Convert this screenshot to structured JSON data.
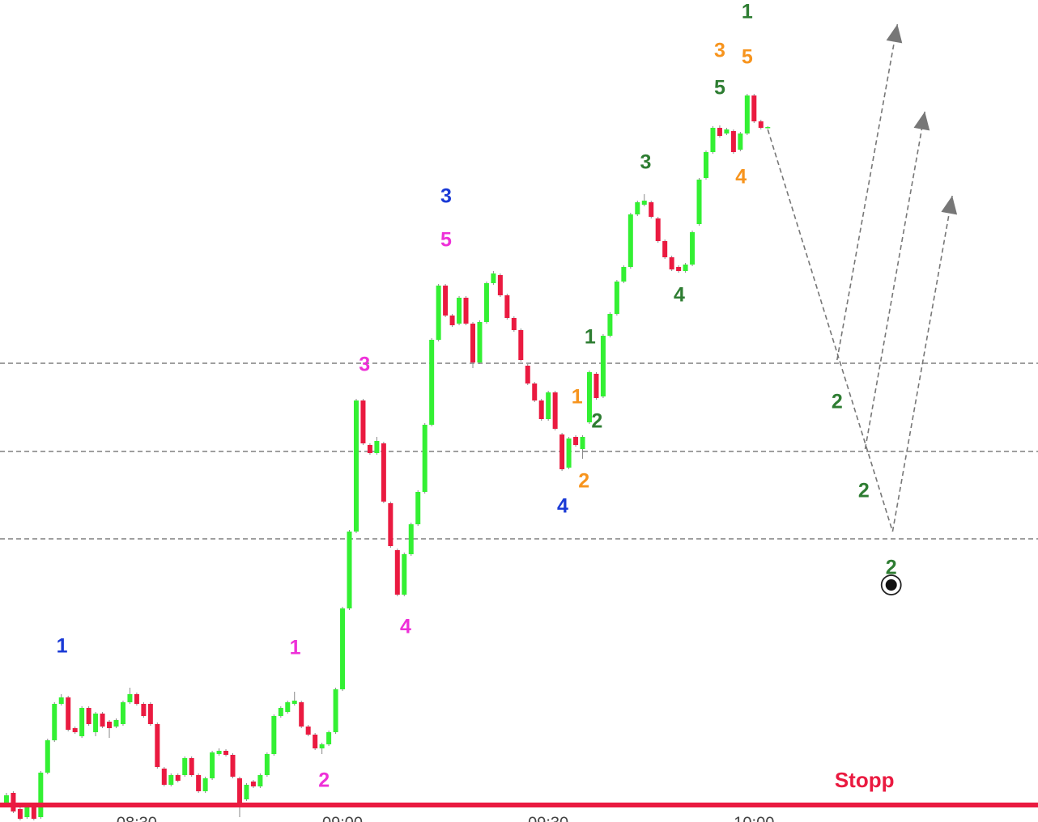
{
  "chart_data": {
    "type": "candlestick",
    "categories": [
      null,
      null,
      null,
      null,
      null,
      null,
      null,
      null,
      null,
      null,
      null,
      null,
      null,
      null,
      null,
      null,
      null,
      null,
      null,
      "08:30",
      null,
      null,
      null,
      null,
      null,
      null,
      null,
      null,
      null,
      null,
      null,
      null,
      null,
      null,
      null,
      null,
      null,
      null,
      null,
      null,
      null,
      null,
      null,
      null,
      null,
      null,
      null,
      null,
      null,
      "09:00",
      null,
      null,
      null,
      null,
      null,
      null,
      null,
      null,
      null,
      null,
      null,
      null,
      null,
      null,
      null,
      null,
      null,
      null,
      null,
      null,
      null,
      null,
      null,
      null,
      null,
      null,
      null,
      null,
      null,
      "09:30",
      null,
      null,
      null,
      null,
      null,
      null,
      null,
      null,
      null,
      null,
      null,
      null,
      null,
      null,
      null,
      null,
      null,
      null,
      null,
      null,
      null,
      null,
      null,
      null,
      null,
      null,
      null,
      null,
      null,
      "10:00",
      null,
      null
    ],
    "open": [
      5,
      20,
      0,
      -10,
      3,
      -10,
      45,
      85,
      130,
      138,
      100,
      90,
      125,
      95,
      118,
      108,
      102,
      105,
      132,
      142,
      130,
      130,
      105,
      50,
      30,
      42,
      42,
      63,
      42,
      22,
      38,
      68,
      72,
      67,
      38,
      12,
      34,
      28,
      42,
      68,
      115,
      120,
      130,
      132,
      102,
      92,
      75,
      80,
      95,
      148,
      248,
      343,
      505,
      450,
      440,
      452,
      378,
      320,
      265,
      315,
      352,
      392,
      475,
      580,
      647,
      610,
      600,
      632,
      600,
      552,
      602,
      650,
      660,
      635,
      607,
      592,
      548,
      526,
      505,
      482,
      515,
      463,
      422,
      460,
      445,
      478,
      538,
      510,
      585,
      612,
      652,
      670,
      735,
      747,
      750,
      730,
      702,
      682,
      670,
      665,
      673,
      723,
      780,
      812,
      842,
      835,
      838,
      815,
      835,
      882,
      850,
      842
    ],
    "high": [
      20,
      22,
      2,
      8,
      5,
      47,
      87,
      132,
      142,
      140,
      102,
      127,
      127,
      120,
      120,
      110,
      112,
      134,
      150,
      144,
      132,
      132,
      107,
      52,
      44,
      44,
      65,
      65,
      44,
      40,
      72,
      75,
      74,
      69,
      40,
      32,
      36,
      44,
      70,
      117,
      127,
      134,
      145,
      134,
      104,
      94,
      82,
      97,
      150,
      250,
      345,
      507,
      507,
      452,
      460,
      454,
      380,
      322,
      317,
      354,
      394,
      477,
      582,
      649,
      649,
      612,
      634,
      634,
      602,
      604,
      652,
      665,
      662,
      637,
      609,
      594,
      550,
      528,
      507,
      517,
      517,
      465,
      460,
      462,
      462,
      542,
      540,
      587,
      614,
      654,
      672,
      737,
      752,
      760,
      752,
      732,
      704,
      684,
      672,
      675,
      715,
      780,
      814,
      844,
      845,
      842,
      840,
      837,
      884,
      884,
      852,
      844
    ],
    "low": [
      2,
      -5,
      -14,
      -12,
      -14,
      -12,
      43,
      83,
      128,
      96,
      93,
      88,
      103,
      90,
      100,
      88,
      100,
      103,
      130,
      128,
      113,
      103,
      50,
      28,
      28,
      33,
      40,
      40,
      20,
      20,
      36,
      66,
      65,
      38,
      -10,
      10,
      26,
      26,
      40,
      66,
      113,
      118,
      128,
      100,
      90,
      73,
      68,
      78,
      93,
      146,
      246,
      341,
      450,
      438,
      438,
      378,
      323,
      263,
      263,
      313,
      350,
      390,
      473,
      578,
      608,
      596,
      598,
      598,
      545,
      550,
      600,
      648,
      633,
      605,
      590,
      553,
      524,
      503,
      480,
      480,
      468,
      418,
      420,
      448,
      433,
      476,
      506,
      508,
      583,
      610,
      650,
      668,
      733,
      745,
      730,
      700,
      680,
      665,
      663,
      663,
      671,
      721,
      778,
      810,
      830,
      833,
      810,
      813,
      833,
      848,
      840,
      841
    ],
    "close": [
      17,
      -3,
      -12,
      5,
      -12,
      45,
      85,
      130,
      138,
      98,
      95,
      125,
      105,
      118,
      102,
      100,
      110,
      132,
      142,
      130,
      115,
      105,
      52,
      30,
      42,
      35,
      63,
      42,
      22,
      38,
      70,
      72,
      67,
      40,
      8,
      30,
      28,
      42,
      68,
      115,
      125,
      132,
      134,
      102,
      92,
      75,
      80,
      95,
      148,
      248,
      343,
      505,
      452,
      440,
      455,
      380,
      325,
      265,
      315,
      352,
      392,
      475,
      580,
      647,
      610,
      598,
      632,
      600,
      552,
      602,
      650,
      662,
      635,
      607,
      592,
      555,
      526,
      505,
      482,
      515,
      470,
      420,
      458,
      450,
      460,
      540,
      508,
      585,
      612,
      652,
      670,
      735,
      750,
      752,
      732,
      702,
      682,
      667,
      665,
      673,
      713,
      778,
      812,
      842,
      832,
      840,
      812,
      835,
      882,
      850,
      842,
      843
    ],
    "up_color": "#33f033",
    "down_color": "#ea1a40",
    "xlim": [
      -0.94,
      150.4
    ],
    "ylim": [
      -16,
      1000
    ],
    "levels": [
      551,
      442,
      334
    ],
    "level_color": "#666666",
    "stop": {
      "value": 5,
      "color": "#ea1a40"
    },
    "projection": {
      "color": "#777777",
      "paths": [
        {
          "x": [
            111.0,
            129.2
          ],
          "y": [
            840,
            343
          ]
        },
        {
          "x": [
            121.1,
            129.9
          ],
          "y": [
            555,
            970
          ]
        },
        {
          "x": [
            125.2,
            133.9
          ],
          "y": [
            445,
            862
          ]
        },
        {
          "x": [
            129.2,
            137.9
          ],
          "y": [
            343,
            758
          ]
        }
      ]
    },
    "target": {
      "x": 129.0,
      "y": 277
    },
    "annotations": [
      {
        "text": "1",
        "color": "#1a3ad6",
        "x": 8.1,
        "y": 200
      },
      {
        "text": "1",
        "color": "#ee30d8",
        "x": 42.1,
        "y": 198
      },
      {
        "text": "2",
        "color": "#ee30d8",
        "x": 46.3,
        "y": 34
      },
      {
        "text": "3",
        "color": "#ee30d8",
        "x": 52.2,
        "y": 548
      },
      {
        "text": "4",
        "color": "#ee30d8",
        "x": 58.2,
        "y": 224
      },
      {
        "text": "5",
        "color": "#ee30d8",
        "x": 64.1,
        "y": 702
      },
      {
        "text": "3",
        "color": "#1a3ad6",
        "x": 64.1,
        "y": 756
      },
      {
        "text": "4",
        "color": "#1a3ad6",
        "x": 81.1,
        "y": 373
      },
      {
        "text": "1",
        "color": "#f7941d",
        "x": 83.2,
        "y": 508
      },
      {
        "text": "2",
        "color": "#f7941d",
        "x": 84.2,
        "y": 404
      },
      {
        "text": "1",
        "color": "#2e7d32",
        "x": 85.1,
        "y": 582
      },
      {
        "text": "2",
        "color": "#2e7d32",
        "x": 86.1,
        "y": 478
      },
      {
        "text": "3",
        "color": "#2e7d32",
        "x": 93.2,
        "y": 798
      },
      {
        "text": "4",
        "color": "#2e7d32",
        "x": 98.1,
        "y": 634
      },
      {
        "text": "5",
        "color": "#2e7d32",
        "x": 104.0,
        "y": 890
      },
      {
        "text": "3",
        "color": "#f7941d",
        "x": 104.0,
        "y": 936
      },
      {
        "text": "5",
        "color": "#f7941d",
        "x": 108.0,
        "y": 928
      },
      {
        "text": "1",
        "color": "#2e7d32",
        "x": 108.0,
        "y": 984
      },
      {
        "text": "4",
        "color": "#f7941d",
        "x": 107.1,
        "y": 780
      },
      {
        "text": "2",
        "color": "#2e7d32",
        "x": 121.1,
        "y": 502
      },
      {
        "text": "2",
        "color": "#2e7d32",
        "x": 125.0,
        "y": 392
      },
      {
        "text": "2",
        "color": "#2e7d32",
        "x": 129.0,
        "y": 297
      },
      {
        "text": "Stopp",
        "color": "#ea1a40",
        "x": 125.1,
        "y": 34
      }
    ]
  }
}
